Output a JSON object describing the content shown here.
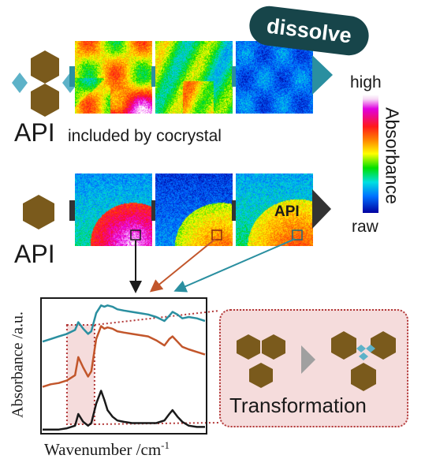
{
  "top_row": {
    "badge": "dissolve",
    "caption_api": "API",
    "caption_rest": "included by cocrystal"
  },
  "middle_row": {
    "caption_api": "API",
    "map_label": "API"
  },
  "colorbar": {
    "high": "high",
    "low": "raw",
    "title": "Absorbance"
  },
  "chart_data": {
    "type": "line",
    "xlabel": "Wavenumber /cm",
    "xlabel_sup": "-1",
    "ylabel": "Absorbance /a.u.",
    "grid": false,
    "series": [
      {
        "color": "#2a8fa0",
        "x": [
          0,
          5,
          10,
          15,
          20,
          22,
          25,
          28,
          30,
          33,
          36,
          38,
          40,
          43,
          46,
          50,
          55,
          60,
          65,
          70,
          75,
          78,
          80,
          83,
          86,
          90,
          95,
          100
        ],
        "y": [
          0.7,
          0.72,
          0.74,
          0.76,
          0.79,
          0.85,
          0.8,
          0.76,
          0.78,
          0.92,
          0.98,
          0.97,
          0.98,
          0.97,
          0.95,
          0.94,
          0.93,
          0.92,
          0.91,
          0.89,
          0.86,
          0.9,
          0.93,
          0.91,
          0.88,
          0.89,
          0.88,
          0.86
        ]
      },
      {
        "color": "#c2562b",
        "x": [
          0,
          5,
          10,
          15,
          20,
          22,
          25,
          28,
          30,
          33,
          36,
          38,
          40,
          43,
          46,
          50,
          55,
          60,
          65,
          70,
          75,
          78,
          80,
          83,
          86,
          90,
          95,
          100
        ],
        "y": [
          0.35,
          0.37,
          0.38,
          0.4,
          0.44,
          0.58,
          0.5,
          0.43,
          0.47,
          0.72,
          0.82,
          0.8,
          0.81,
          0.8,
          0.78,
          0.77,
          0.76,
          0.75,
          0.74,
          0.71,
          0.67,
          0.72,
          0.74,
          0.7,
          0.66,
          0.64,
          0.62,
          0.6
        ]
      },
      {
        "color": "#1a1a1a",
        "x": [
          0,
          5,
          10,
          15,
          20,
          22,
          25,
          28,
          30,
          33,
          36,
          38,
          40,
          43,
          46,
          50,
          55,
          60,
          65,
          70,
          75,
          78,
          80,
          83,
          86,
          90,
          95,
          100
        ],
        "y": [
          0.02,
          0.02,
          0.02,
          0.03,
          0.05,
          0.14,
          0.08,
          0.05,
          0.07,
          0.22,
          0.32,
          0.25,
          0.17,
          0.12,
          0.09,
          0.08,
          0.07,
          0.07,
          0.07,
          0.07,
          0.09,
          0.14,
          0.17,
          0.12,
          0.08,
          0.05,
          0.04,
          0.04
        ]
      }
    ],
    "highlight_x": [
      15,
      32
    ]
  },
  "transformation": {
    "label": "Transformation"
  },
  "colors": {
    "hex_brown": "#7a5a1c",
    "hex_blue": "#5db2c8",
    "teal": "#2a8fa0",
    "orange": "#c2562b",
    "dark_teal": "#17454a",
    "dotted_red": "#b23838",
    "pink_fill": "#f5dcdc"
  }
}
